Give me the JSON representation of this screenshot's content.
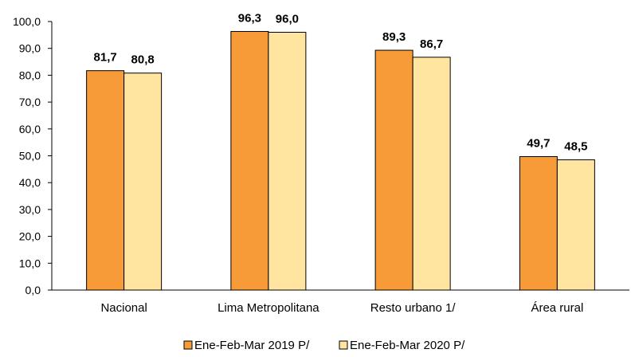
{
  "chart_data": {
    "type": "bar",
    "categories": [
      "Nacional",
      "Lima Metropolitana",
      "Resto urbano 1/",
      "Área rural"
    ],
    "series": [
      {
        "name": "Ene-Feb-Mar 2019 P/",
        "values": [
          81.7,
          96.3,
          89.3,
          49.7
        ],
        "color": "#F79B39",
        "labels": [
          "81,7",
          "96,3",
          "89,3",
          "49,7"
        ]
      },
      {
        "name": "Ene-Feb-Mar 2020 P/",
        "values": [
          80.8,
          96.0,
          86.7,
          48.5
        ],
        "color": "#FFE5A0",
        "labels": [
          "80,8",
          "96,0",
          "86,7",
          "48,5"
        ]
      }
    ],
    "ylim": [
      0,
      100
    ],
    "yticks": [
      "0,0",
      "10,0",
      "20,0",
      "30,0",
      "40,0",
      "50,0",
      "60,0",
      "70,0",
      "80,0",
      "90,0",
      "100,0"
    ],
    "grid": false,
    "legend_position": "bottom",
    "title": "",
    "xlabel": "",
    "ylabel": ""
  }
}
